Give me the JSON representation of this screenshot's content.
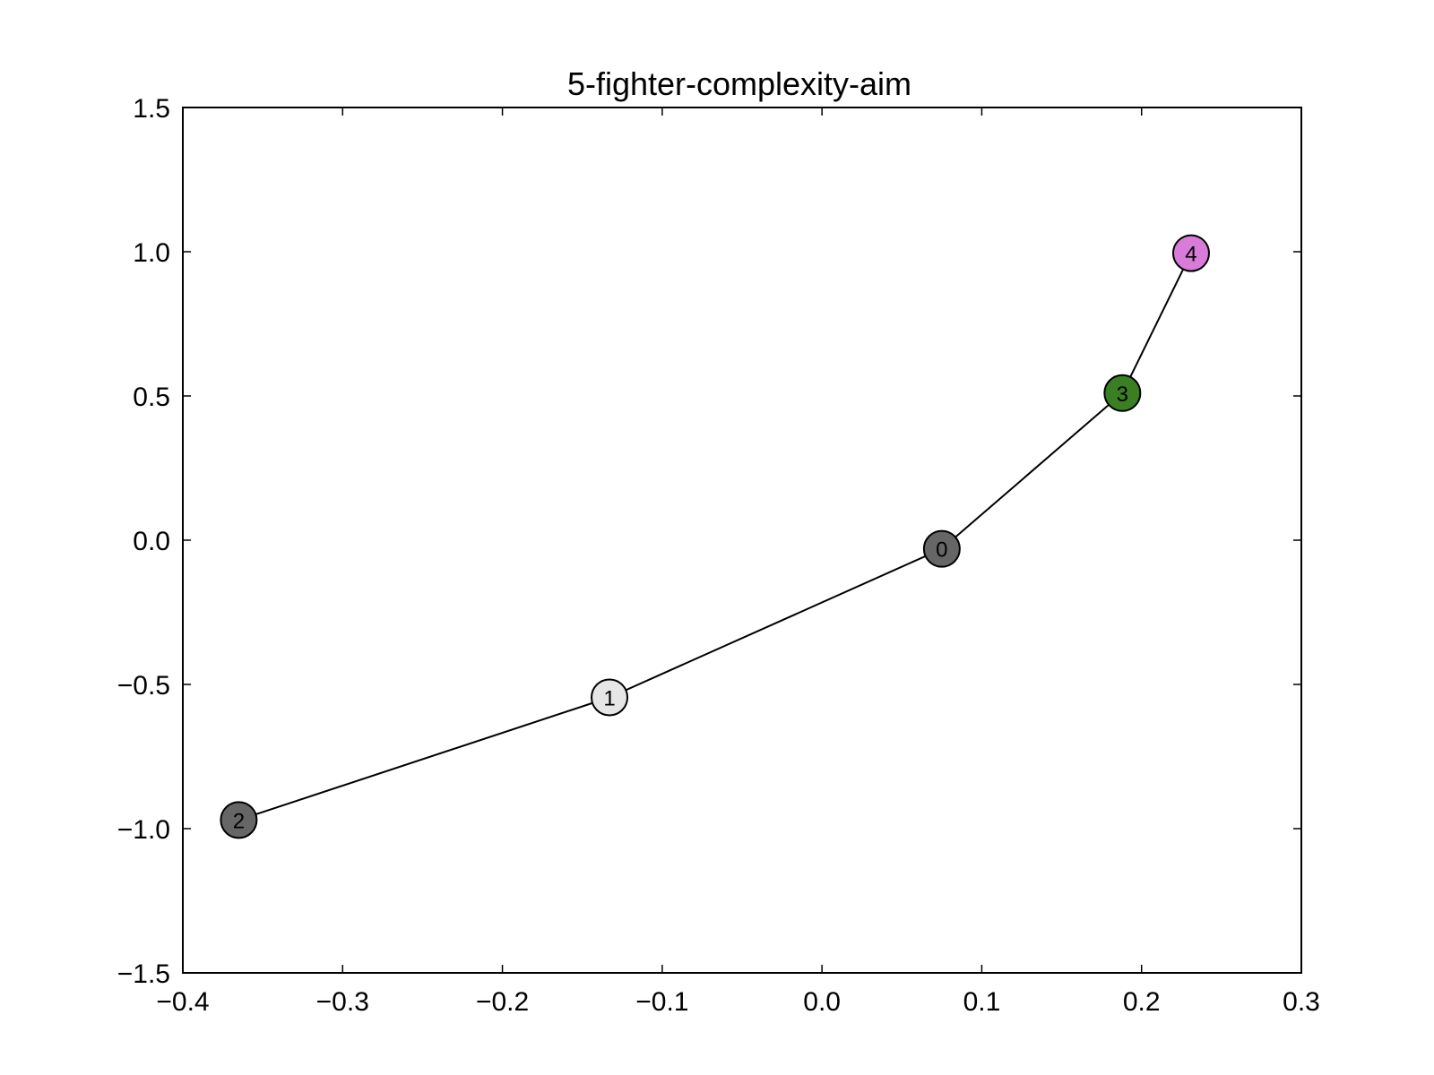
{
  "chart_data": {
    "type": "scatter",
    "title": "5-fighter-complexity-aim",
    "xlabel": "",
    "ylabel": "",
    "xlim": [
      -0.4,
      0.3
    ],
    "ylim": [
      -1.5,
      1.5
    ],
    "x_ticks": [
      "−0.4",
      "−0.3",
      "−0.2",
      "−0.1",
      "0.0",
      "0.1",
      "0.2",
      "0.3"
    ],
    "x_tick_values": [
      -0.4,
      -0.3,
      -0.2,
      -0.1,
      0.0,
      0.1,
      0.2,
      0.3
    ],
    "y_ticks": [
      "−1.5",
      "−1.0",
      "−0.5",
      "0.0",
      "0.5",
      "1.0",
      "1.5"
    ],
    "y_tick_values": [
      -1.5,
      -1.0,
      -0.5,
      0.0,
      0.5,
      1.0,
      1.5
    ],
    "grid": false,
    "nodes": [
      {
        "label": "0",
        "x": 0.075,
        "y": -0.03,
        "color": "#666666"
      },
      {
        "label": "1",
        "x": -0.133,
        "y": -0.545,
        "color": "#e6e6e6"
      },
      {
        "label": "2",
        "x": -0.365,
        "y": -0.97,
        "color": "#666666"
      },
      {
        "label": "3",
        "x": 0.188,
        "y": 0.51,
        "color": "#3a7f22"
      },
      {
        "label": "4",
        "x": 0.231,
        "y": 0.995,
        "color": "#d97bd8"
      }
    ],
    "edges": [
      [
        "2",
        "1"
      ],
      [
        "1",
        "0"
      ],
      [
        "0",
        "3"
      ],
      [
        "3",
        "4"
      ]
    ]
  }
}
